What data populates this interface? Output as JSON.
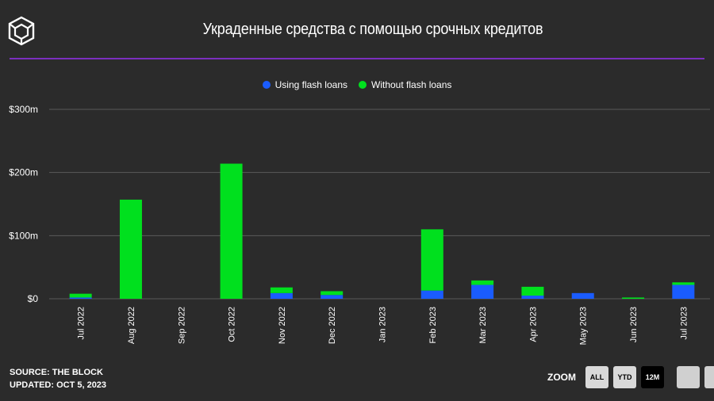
{
  "header": {
    "title": "Украденные средства с помощью срочных кредитов"
  },
  "legend": [
    {
      "label": "Using flash loans",
      "color": "#1a5cff"
    },
    {
      "label": "Without flash loans",
      "color": "#00e01e"
    }
  ],
  "footer": {
    "source": "SOURCE: THE BLOCK",
    "updated": "UPDATED: OCT 5, 2023"
  },
  "zoom": {
    "label": "ZOOM",
    "buttons": [
      "ALL",
      "YTD",
      "12M"
    ],
    "active": "12M"
  },
  "chart_data": {
    "type": "bar",
    "stacked": true,
    "title": "Украденные средства с помощью срочных кредитов",
    "categories": [
      "Jul 2022",
      "Aug 2022",
      "Sep 2022",
      "Oct 2022",
      "Nov 2022",
      "Dec 2022",
      "Jan 2023",
      "Feb 2023",
      "Mar 2023",
      "Apr 2023",
      "May 2023",
      "Jun 2023",
      "Jul 2023"
    ],
    "series": [
      {
        "name": "Using flash loans",
        "color": "#1a5cff",
        "values": [
          2,
          0,
          0,
          0,
          9,
          6,
          0,
          13,
          22,
          5,
          9,
          0,
          22
        ]
      },
      {
        "name": "Without flash loans",
        "color": "#00e01e",
        "values": [
          6,
          157,
          0,
          214,
          9,
          6,
          0,
          97,
          7,
          14,
          0,
          2,
          4
        ]
      }
    ],
    "yticks": [
      "$0",
      "$100m",
      "$200m",
      "$300m"
    ],
    "ylim": [
      0,
      300
    ],
    "grid": true,
    "legend_position": "top-center"
  }
}
